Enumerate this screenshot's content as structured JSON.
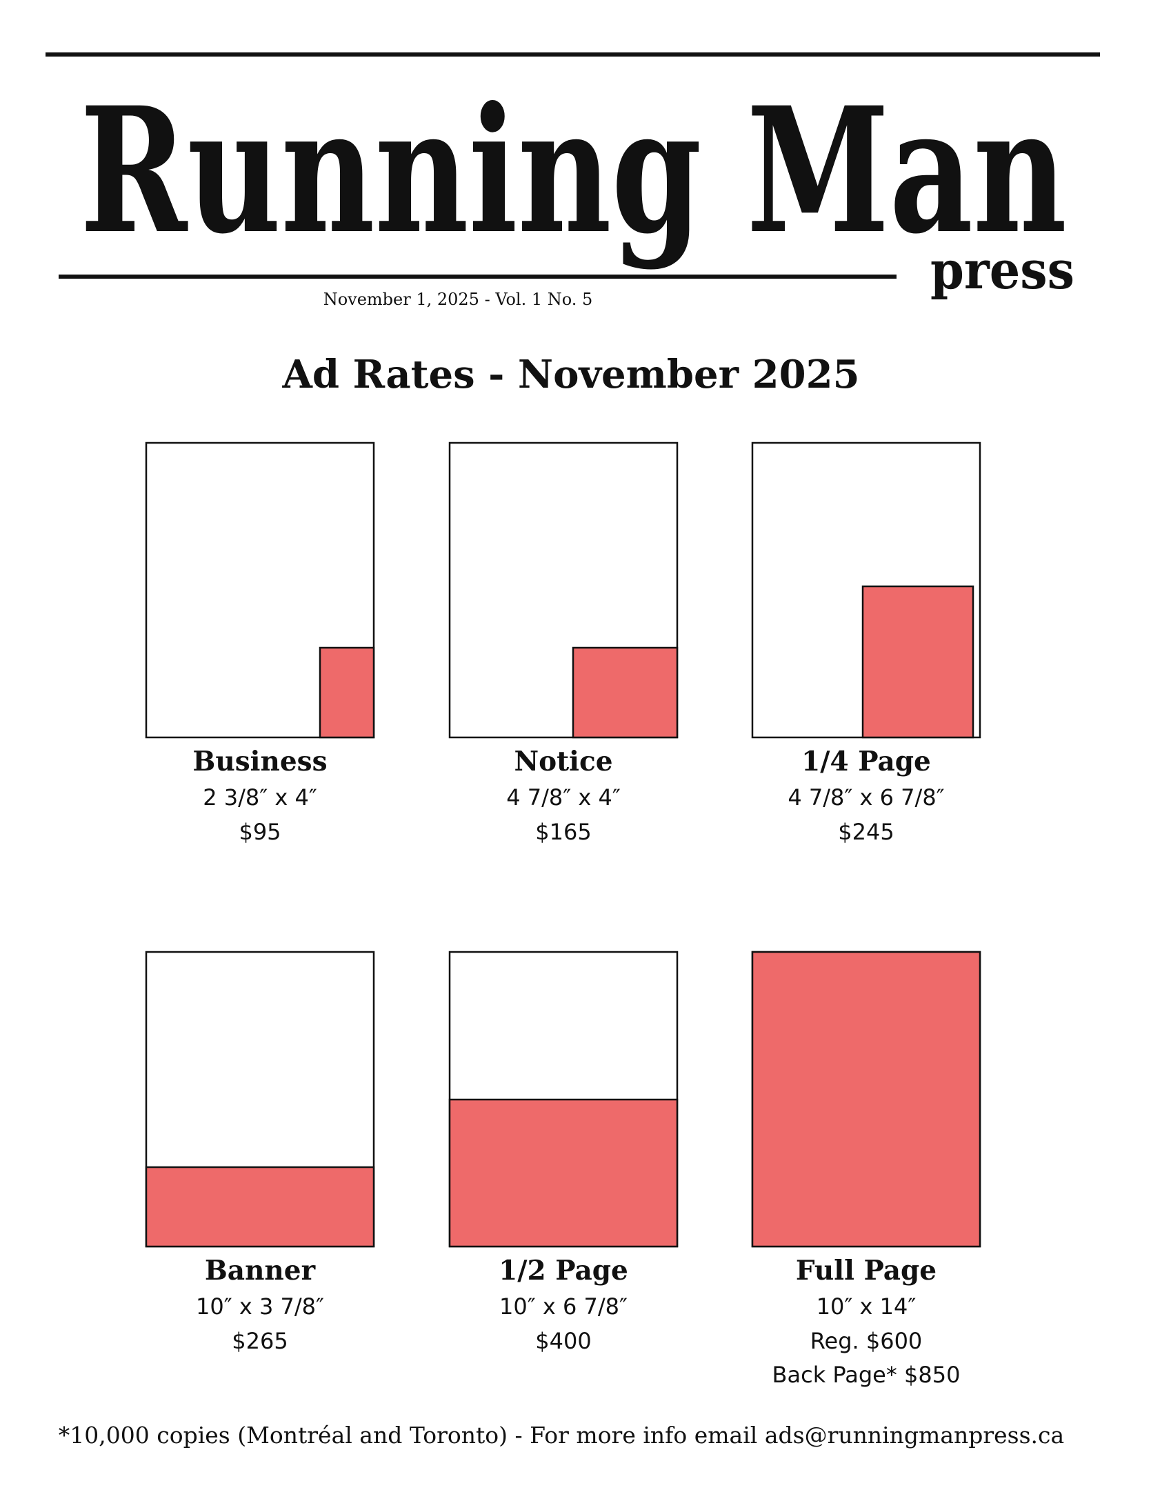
{
  "header": {
    "title": "Running Man",
    "subtitle": "press",
    "issue": "November 1, 2025 - Vol. 1 No. 5"
  },
  "heading": "Ad Rates - November 2025",
  "ads": [
    {
      "name": "Business",
      "size": "2 3/8″ x 4″",
      "prices": [
        "$95"
      ]
    },
    {
      "name": "Notice",
      "size": "4 7/8″ x 4″",
      "prices": [
        "$165"
      ]
    },
    {
      "name": "1/4 Page",
      "size": "4 7/8″ x 6 7/8″",
      "prices": [
        "$245"
      ]
    },
    {
      "name": "Banner",
      "size": "10″ x 3 7/8″",
      "prices": [
        "$265"
      ]
    },
    {
      "name": "1/2 Page",
      "size": "10″ x 6 7/8″",
      "prices": [
        "$400"
      ]
    },
    {
      "name": "Full Page",
      "size": "10″ x 14″",
      "prices": [
        "Reg. $600",
        "Back Page* $850"
      ]
    }
  ],
  "footer": "*10,000 copies (Montréal and Toronto) - For more info email ads@runningmanpress.ca"
}
